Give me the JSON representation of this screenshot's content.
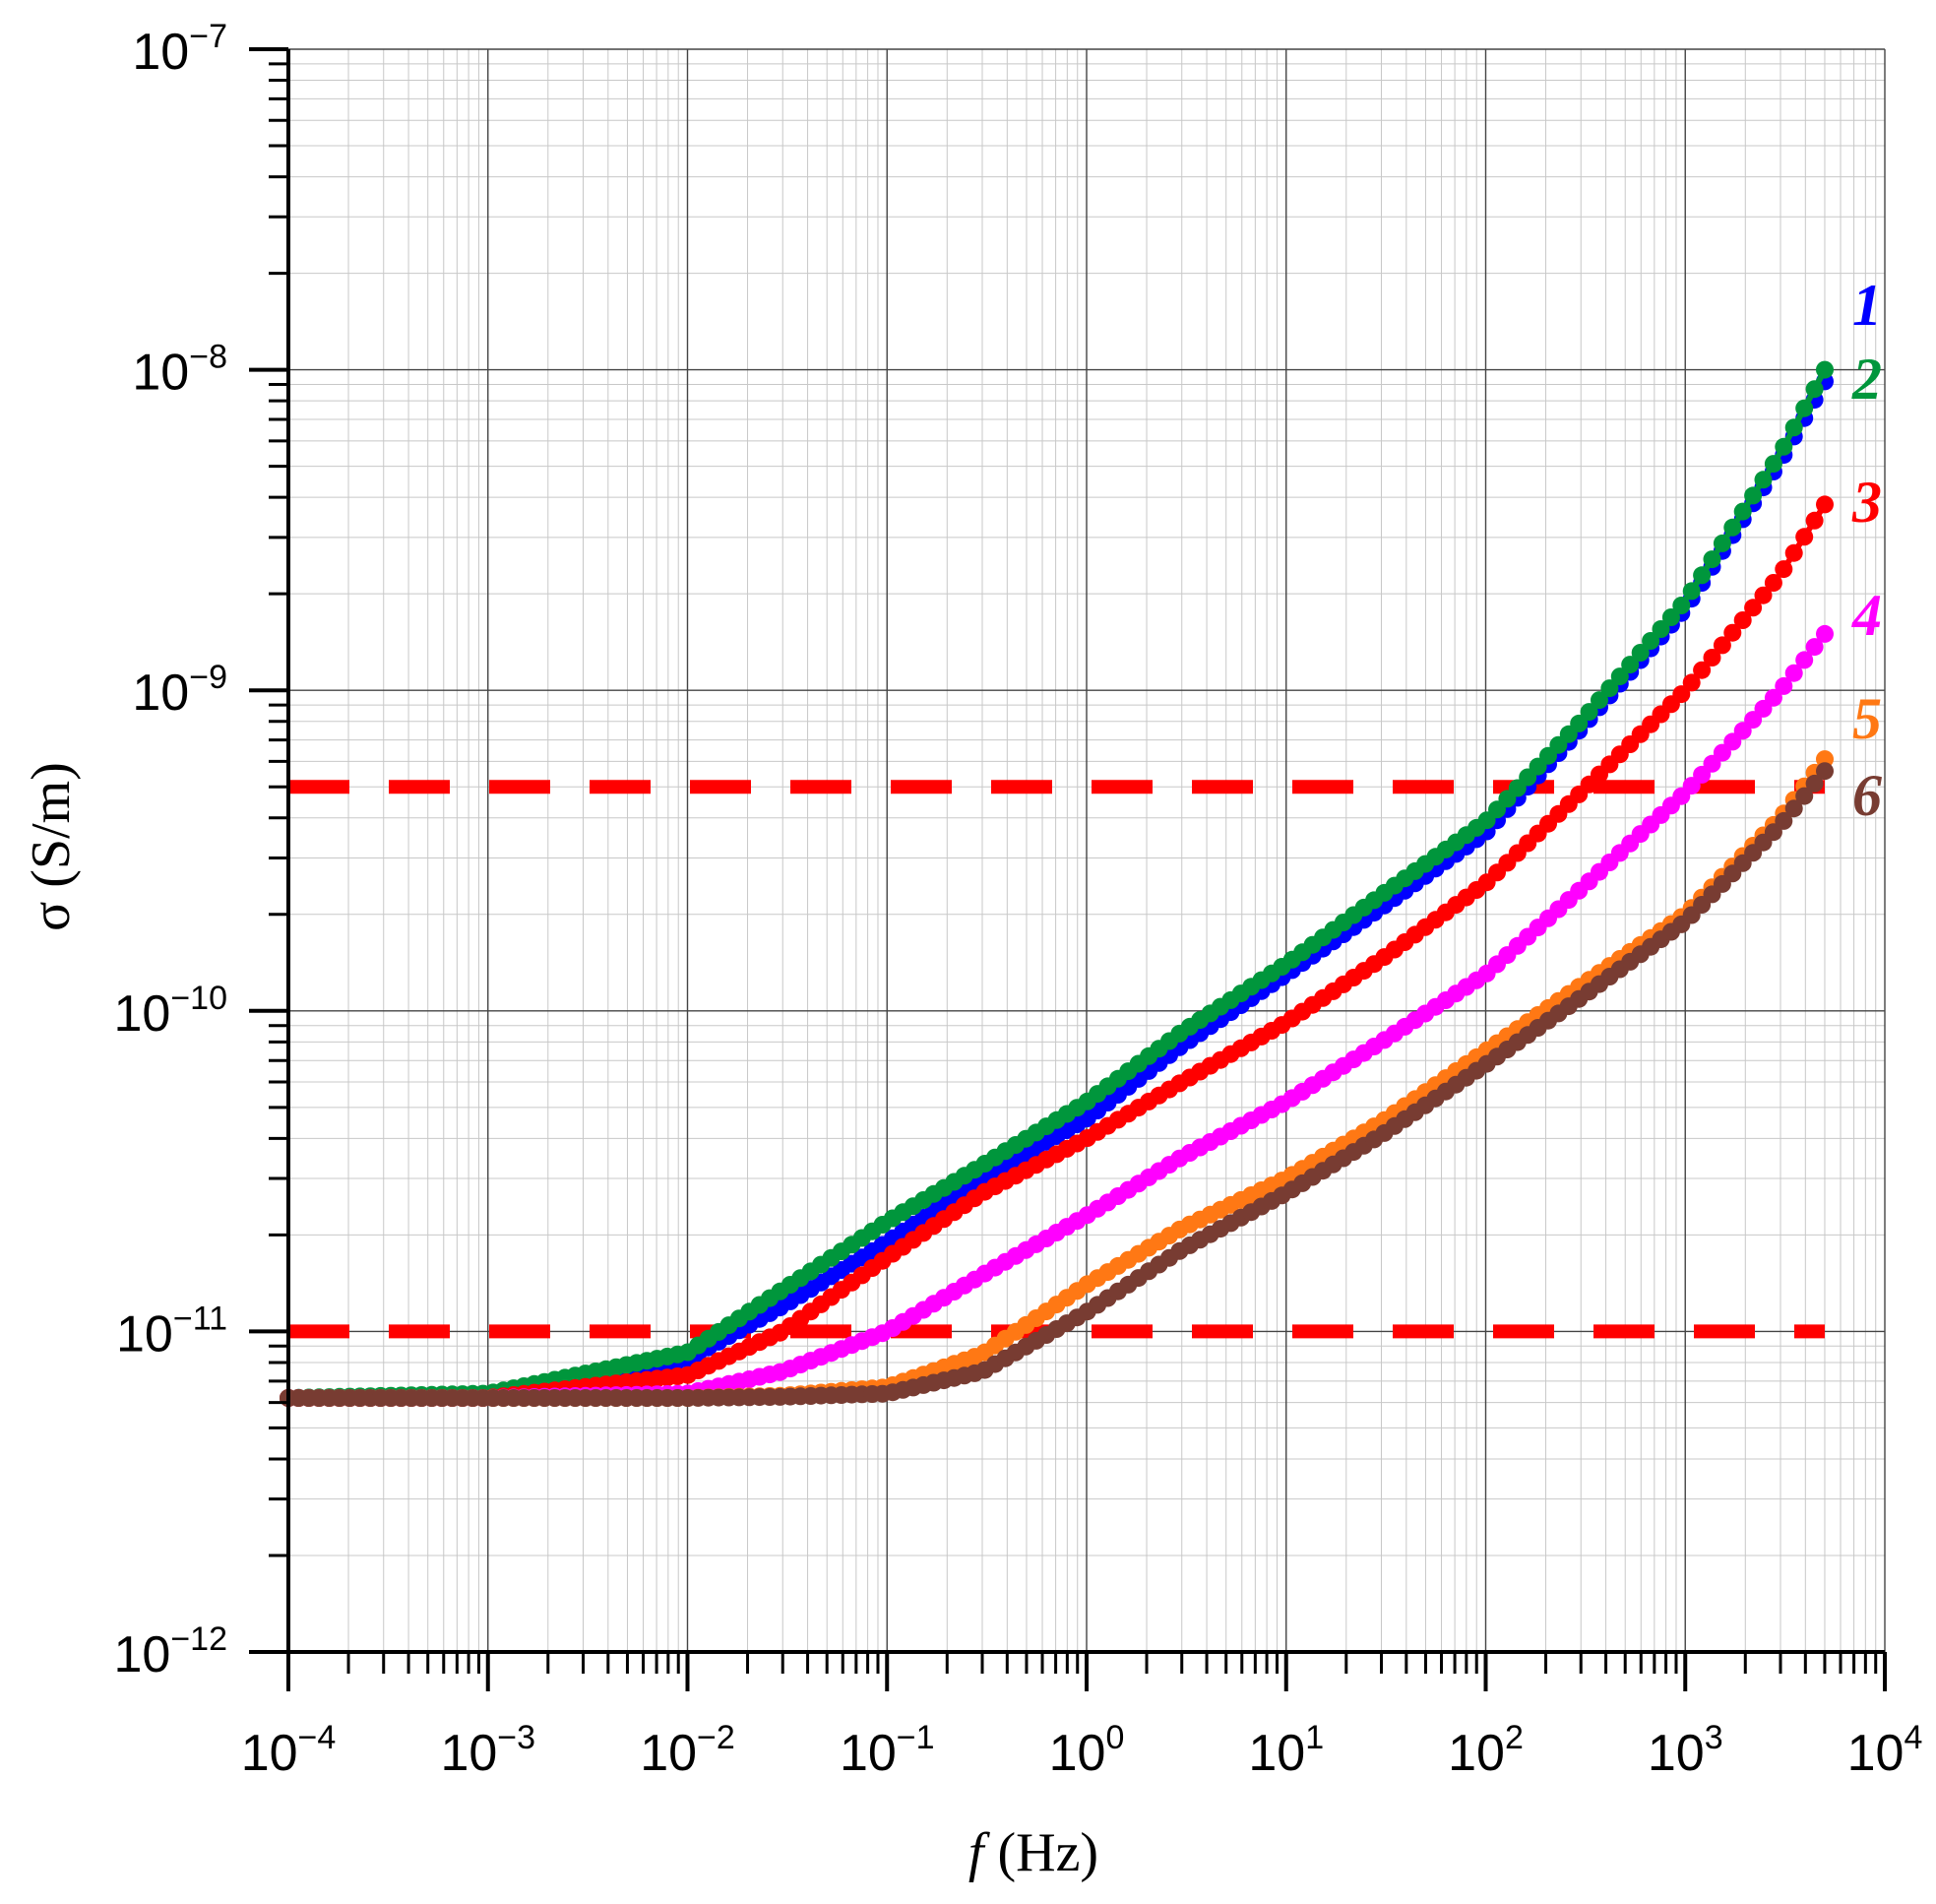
{
  "chart_data": {
    "type": "line",
    "title": "",
    "xlabel_var": "f",
    "xlabel_unit": "(Hz)",
    "ylabel": "σ (S/m)",
    "xscale": "log",
    "yscale": "log",
    "xlim": [
      0.0001,
      10000
    ],
    "ylim": [
      1e-12,
      1e-07
    ],
    "grid": true,
    "x_ticks": [
      {
        "base": "10",
        "exp": "−4"
      },
      {
        "base": "10",
        "exp": "−3"
      },
      {
        "base": "10",
        "exp": "−2"
      },
      {
        "base": "10",
        "exp": "−1"
      },
      {
        "base": "10",
        "exp": "0"
      },
      {
        "base": "10",
        "exp": "1"
      },
      {
        "base": "10",
        "exp": "2"
      },
      {
        "base": "10",
        "exp": "3"
      },
      {
        "base": "10",
        "exp": "4"
      }
    ],
    "y_ticks": [
      {
        "base": "10",
        "exp": "−12"
      },
      {
        "base": "10",
        "exp": "−11"
      },
      {
        "base": "10",
        "exp": "−10"
      },
      {
        "base": "10",
        "exp": "−9"
      },
      {
        "base": "10",
        "exp": "−8"
      },
      {
        "base": "10",
        "exp": "−7"
      }
    ],
    "series": [
      {
        "label": "1",
        "color": "#0000ff",
        "x": [
          0.0001,
          0.001,
          0.01,
          0.03,
          0.1,
          0.3,
          1,
          3,
          10,
          30,
          100,
          300,
          1000,
          3000,
          5000
        ],
        "y": [
          6.2e-12,
          6.3e-12,
          8.2e-12,
          1.2e-11,
          1.9e-11,
          3e-11,
          4.6e-11,
          7.8e-11,
          1.3e-10,
          2.1e-10,
          3.6e-10,
          7.6e-10,
          1.8e-09,
          5.2e-09,
          9.2e-09
        ]
      },
      {
        "label": "2",
        "color": "#00963c",
        "x": [
          0.0001,
          0.001,
          0.01,
          0.03,
          0.1,
          0.3,
          1,
          3,
          10,
          30,
          100,
          300,
          1000,
          3000,
          5000
        ],
        "y": [
          6.2e-12,
          6.4e-12,
          8.6e-12,
          1.35e-11,
          2.2e-11,
          3.3e-11,
          5.2e-11,
          8.6e-11,
          1.4e-10,
          2.3e-10,
          3.9e-10,
          8e-10,
          1.9e-09,
          5.5e-09,
          1e-08
        ]
      },
      {
        "label": "3",
        "color": "#ff0000",
        "x": [
          0.0001,
          0.001,
          0.01,
          0.03,
          0.1,
          0.3,
          1,
          3,
          10,
          30,
          100,
          300,
          1000,
          3000,
          5000
        ],
        "y": [
          6.2e-12,
          6.2e-12,
          7.3e-12,
          1e-11,
          1.7e-11,
          2.7e-11,
          4e-11,
          6e-11,
          9.2e-11,
          1.45e-10,
          2.5e-10,
          4.8e-10,
          1e-09,
          2.3e-09,
          3.8e-09
        ]
      },
      {
        "label": "4",
        "color": "#ff00ff",
        "x": [
          0.0001,
          0.001,
          0.01,
          0.03,
          0.1,
          0.3,
          1,
          3,
          10,
          30,
          100,
          300,
          1000,
          3000,
          5000
        ],
        "y": [
          6.2e-12,
          6.2e-12,
          6.4e-12,
          7.5e-12,
          1e-11,
          1.5e-11,
          2.3e-11,
          3.5e-11,
          5.2e-11,
          8e-11,
          1.3e-10,
          2.4e-10,
          4.8e-10,
          1e-09,
          1.5e-09
        ]
      },
      {
        "label": "5",
        "color": "#ff7814",
        "x": [
          0.0001,
          0.001,
          0.01,
          0.03,
          0.1,
          0.3,
          1,
          3,
          10,
          30,
          100,
          300,
          1000,
          3000,
          5000
        ],
        "y": [
          6.2e-12,
          6.2e-12,
          6.2e-12,
          6.3e-12,
          6.7e-12,
          8.5e-12,
          1.4e-11,
          2.1e-11,
          3e-11,
          4.5e-11,
          7.5e-11,
          1.2e-10,
          2e-10,
          4e-10,
          6.1e-10
        ]
      },
      {
        "label": "6",
        "color": "#783c32",
        "x": [
          0.0001,
          0.001,
          0.01,
          0.03,
          0.1,
          0.3,
          1,
          3,
          10,
          30,
          100,
          300,
          1000,
          3000,
          5000
        ],
        "y": [
          6.2e-12,
          6.2e-12,
          6.2e-12,
          6.25e-12,
          6.4e-12,
          7.5e-12,
          1.15e-11,
          1.8e-11,
          2.7e-11,
          4.1e-11,
          6.8e-11,
          1.1e-10,
          1.9e-10,
          3.8e-10,
          5.6e-10
        ]
      }
    ],
    "reference_lines": [
      {
        "y": 5e-10,
        "color": "#ff0000",
        "style": "dashed",
        "x": [
          0.0001,
          5000
        ]
      },
      {
        "y": 1e-11,
        "color": "#ff0000",
        "style": "dashed",
        "x": [
          0.0001,
          5000
        ]
      }
    ]
  }
}
